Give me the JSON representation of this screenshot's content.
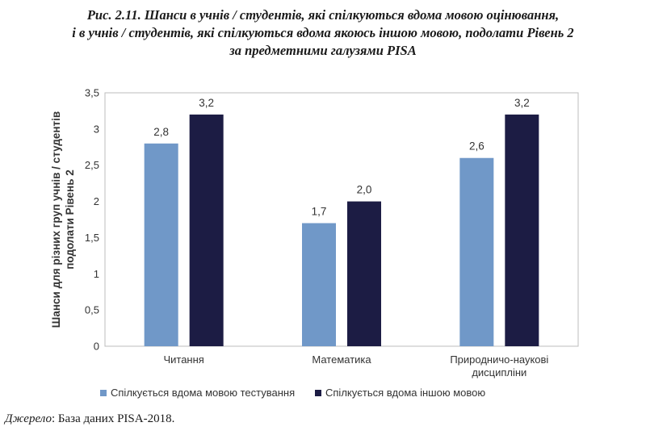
{
  "caption": {
    "line1": "Рис. 2.11. Шанси в учнів / студентів, які спілкуються вдома мовою оцінювання,",
    "line2": "і в учнів / студентів, які спілкуються вдома якоюсь іншою мовою, подолати Рівень 2",
    "line3": "за предметними галузями PISA"
  },
  "source": {
    "label": "Джерело",
    "text": ": База даних PISA-2018."
  },
  "chart_data": {
    "type": "bar",
    "categories": [
      "Читання",
      "Математика",
      "Природничо-наукові дисципліни"
    ],
    "category_lines": [
      [
        "Читання"
      ],
      [
        "Математика"
      ],
      [
        "Природничо-наукові",
        "дисципліни"
      ]
    ],
    "series": [
      {
        "name": "Спілкується вдома мовою тестування",
        "values": [
          2.8,
          1.7,
          2.6
        ],
        "labels": [
          "2,8",
          "1,7",
          "2,6"
        ],
        "color": "#7098c8"
      },
      {
        "name": "Спілкується вдома іншою мовою",
        "values": [
          3.2,
          2.0,
          3.2
        ],
        "labels": [
          "3,2",
          "2,0",
          "3,2"
        ],
        "color": "#1c1c44"
      }
    ],
    "ylabel_lines": [
      "Шанси для різних груп учнів / студентів",
      "подолати Рівень 2"
    ],
    "ylim": [
      0,
      3.5
    ],
    "yticks": [
      0,
      0.5,
      1,
      1.5,
      2,
      2.5,
      3,
      3.5
    ],
    "ytick_labels": [
      "0",
      "0,5",
      "1",
      "1,5",
      "2",
      "2,5",
      "3",
      "3,5"
    ],
    "grid": false,
    "legend_position": "bottom"
  }
}
